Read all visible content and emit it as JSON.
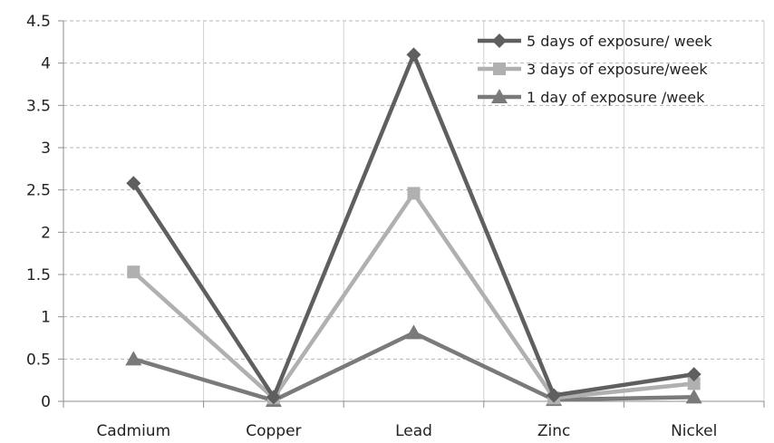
{
  "chart_data": {
    "type": "line",
    "title": "",
    "xlabel": "",
    "ylabel": "",
    "categories": [
      "Cadmium",
      "Copper",
      "Lead",
      "Zinc",
      "Nickel"
    ],
    "ylim": [
      0,
      4.5
    ],
    "y_ticks": [
      "0",
      "0.5",
      "1",
      "1.5",
      "2",
      "2.5",
      "3",
      "3.5",
      "4",
      "4.5"
    ],
    "grid": true,
    "grid_style": "dashed",
    "legend_position": "top-right",
    "series": [
      {
        "name": "5 days of exposure/ week",
        "values": [
          2.58,
          0.05,
          4.1,
          0.07,
          0.32
        ],
        "color": "#5f5f5f",
        "marker": "diamond"
      },
      {
        "name": "3 days of exposure/week",
        "values": [
          1.53,
          0.04,
          2.46,
          0.04,
          0.21
        ],
        "color": "#b0b0b0",
        "marker": "square"
      },
      {
        "name": "1 day of exposure /week",
        "values": [
          0.5,
          0.01,
          0.81,
          0.02,
          0.05
        ],
        "color": "#7a7a7a",
        "marker": "triangle"
      }
    ]
  }
}
